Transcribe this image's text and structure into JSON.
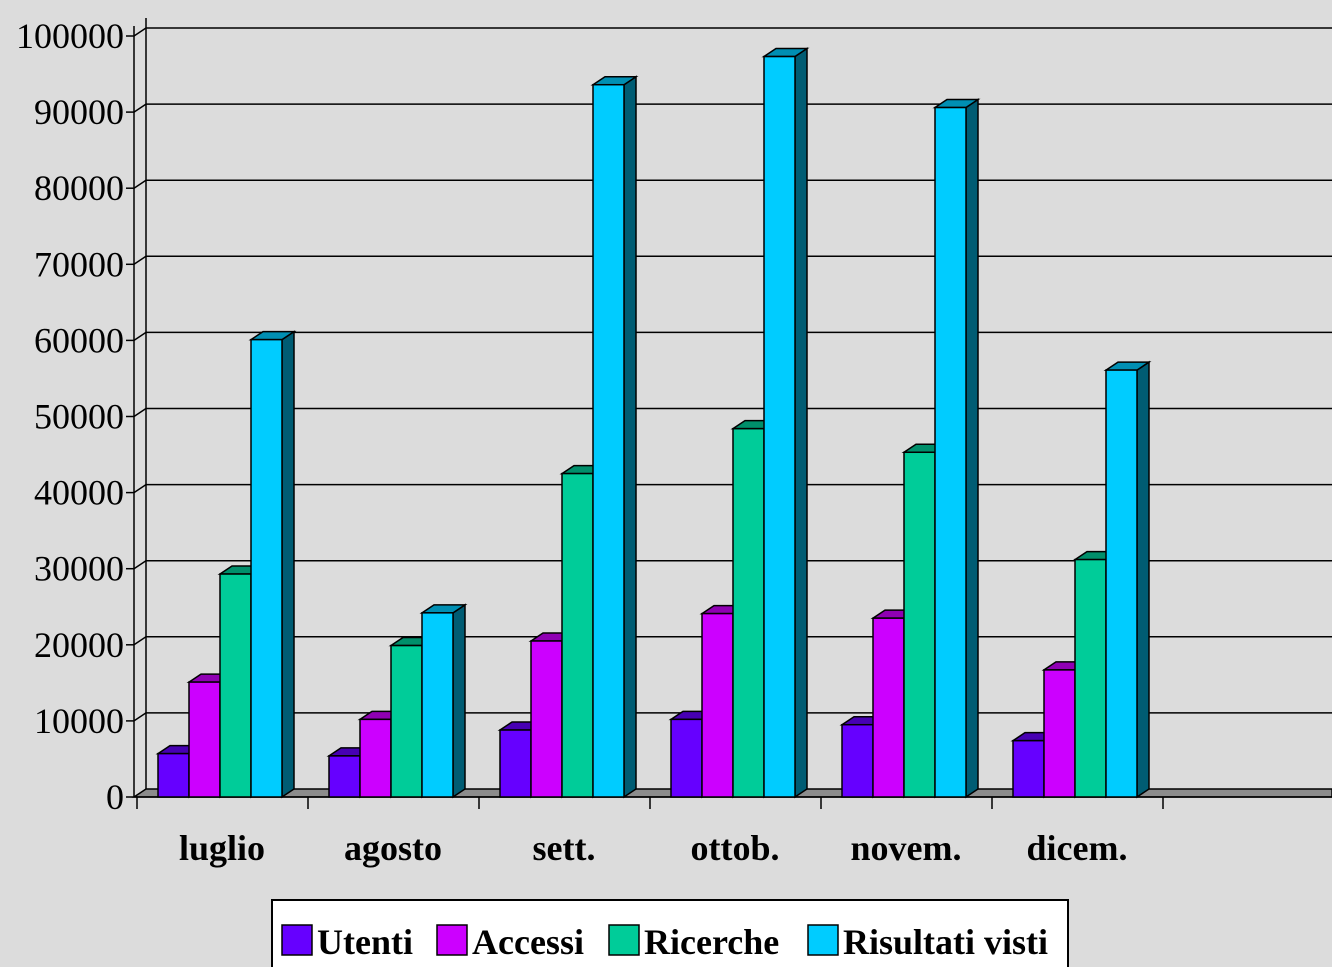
{
  "chart_data": {
    "type": "bar",
    "categories": [
      "luglio",
      "agosto",
      "sett.",
      "ottob.",
      "novem.",
      "dicem."
    ],
    "series": [
      {
        "name": "Utenti",
        "values": [
          5700,
          5400,
          8800,
          10200,
          9500,
          7400
        ]
      },
      {
        "name": "Accessi",
        "values": [
          15100,
          10200,
          20500,
          24100,
          23500,
          16700
        ]
      },
      {
        "name": "Ricerche",
        "values": [
          29300,
          19900,
          42500,
          48400,
          45300,
          31200
        ]
      },
      {
        "name": "Risultati visti",
        "values": [
          60100,
          24200,
          93600,
          97300,
          90600,
          56100
        ]
      }
    ],
    "ylim": [
      0,
      100000
    ],
    "yticks": [
      0,
      10000,
      20000,
      30000,
      40000,
      50000,
      60000,
      70000,
      80000,
      90000,
      100000
    ],
    "grid": true,
    "legend_position": "bottom",
    "colors": {
      "Utenti": "#6600ff",
      "Accessi": "#cc00ff",
      "Ricerche": "#00cc99",
      "Risultati visti": "#00ccff",
      "background": "#dcdcdc",
      "floor": "#8c8c8c"
    },
    "title": "",
    "xlabel": "",
    "ylabel": ""
  }
}
